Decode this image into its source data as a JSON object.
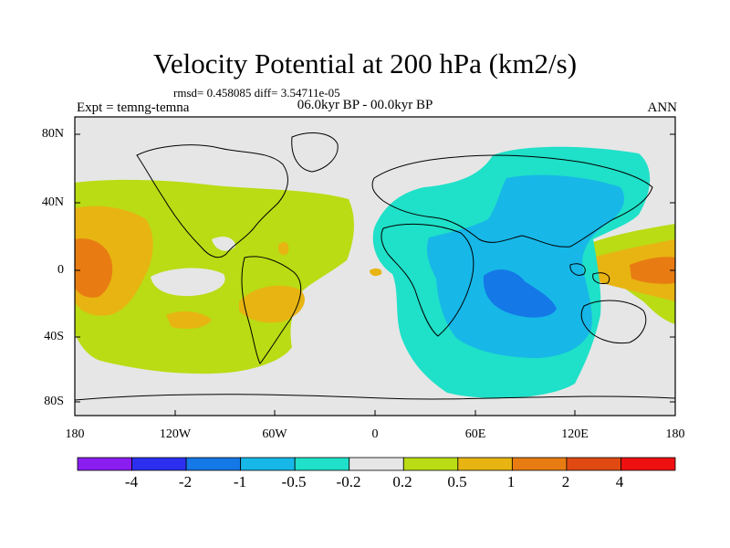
{
  "title": "Velocity Potential at 200 hPa (km2/s)",
  "stats": "rmsd= 0.458085 diff= 3.54711e-05",
  "experiment": "Expt = temng-temna",
  "period": "06.0kyr BP - 00.0kyr BP",
  "season": "ANN",
  "lat_labels": [
    "80N",
    "40N",
    "0",
    "40S",
    "80S"
  ],
  "lon_labels": [
    "180",
    "120W",
    "60W",
    "0",
    "60E",
    "120E",
    "180"
  ],
  "colorbar": {
    "labels": [
      "-4",
      "-2",
      "-1",
      "-0.5",
      "-0.2",
      "0.2",
      "0.5",
      "1",
      "2",
      "4"
    ],
    "colors": [
      "#8a1df0",
      "#2c2ff0",
      "#1478e6",
      "#17b7e8",
      "#1fe0c8",
      "#e6e6e6",
      "#b9dc14",
      "#e8b412",
      "#e87c12",
      "#e04a12",
      "#ee1010"
    ]
  },
  "palette": {
    "neutral": "#e6e6e6",
    "pos_02": "#b9dc14",
    "pos_05": "#e8b412",
    "pos_1": "#e87c12",
    "neg_02": "#1fe0c8",
    "neg_05": "#17b7e8",
    "neg_1": "#1478e6"
  }
}
